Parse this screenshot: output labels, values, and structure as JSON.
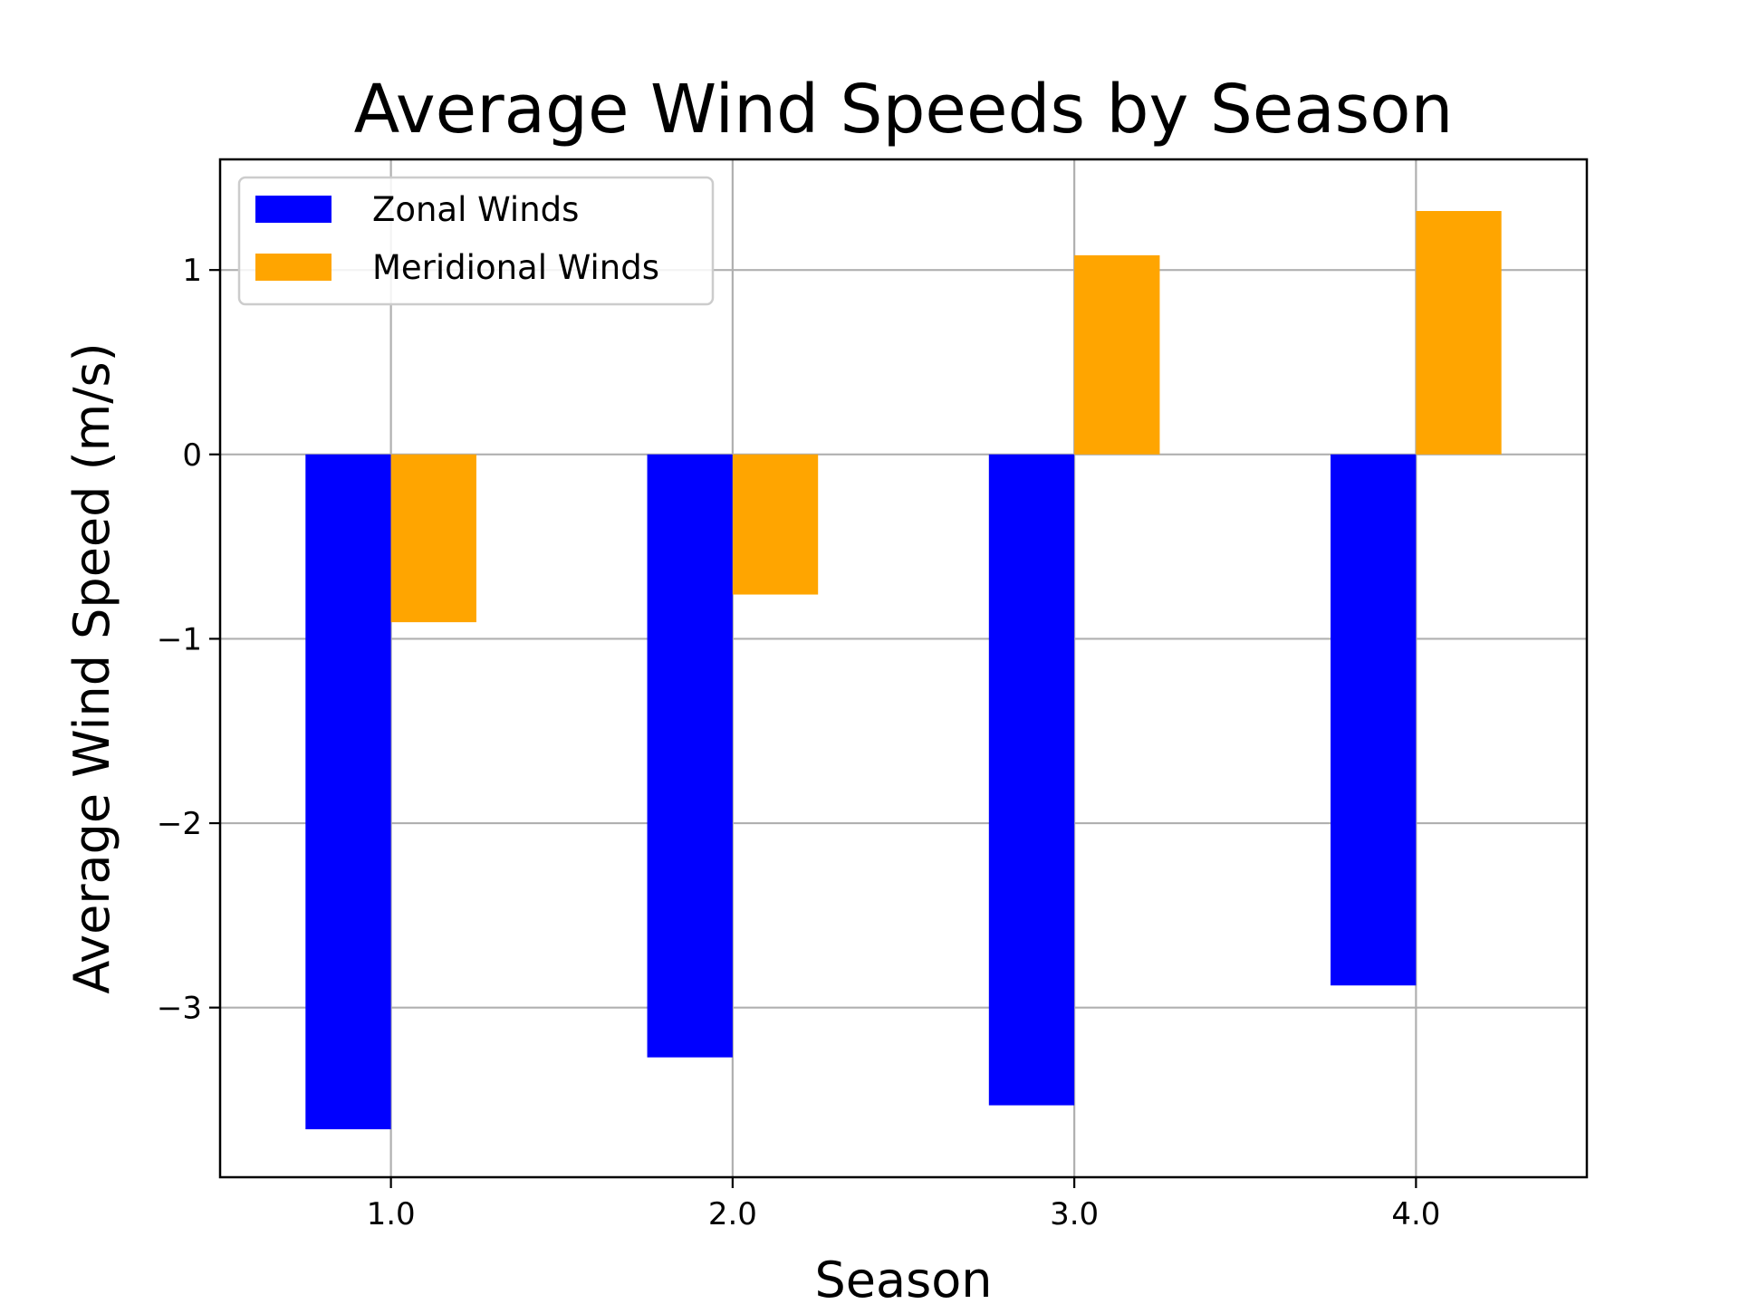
{
  "chart_data": {
    "type": "bar",
    "title": "Average Wind Speeds by Season",
    "xlabel": "Season",
    "ylabel": "Average Wind Speed (m/s)",
    "categories": [
      1.0,
      2.0,
      3.0,
      4.0
    ],
    "x_tick_labels": [
      "1.0",
      "2.0",
      "3.0",
      "4.0"
    ],
    "y_ticks": [
      -3,
      -2,
      -1,
      0,
      1
    ],
    "y_tick_labels": [
      "−3",
      "−2",
      "−1",
      "0",
      "1"
    ],
    "xlim": [
      0.5,
      4.5
    ],
    "ylim": [
      -3.92,
      1.6
    ],
    "grid": true,
    "legend_position": "top-left",
    "series": [
      {
        "name": "Zonal Winds",
        "color": "#0000ff",
        "values": [
          -3.66,
          -3.27,
          -3.53,
          -2.88
        ]
      },
      {
        "name": "Meridional Winds",
        "color": "#ffa500",
        "values": [
          -0.91,
          -0.76,
          1.08,
          1.32
        ]
      }
    ]
  }
}
